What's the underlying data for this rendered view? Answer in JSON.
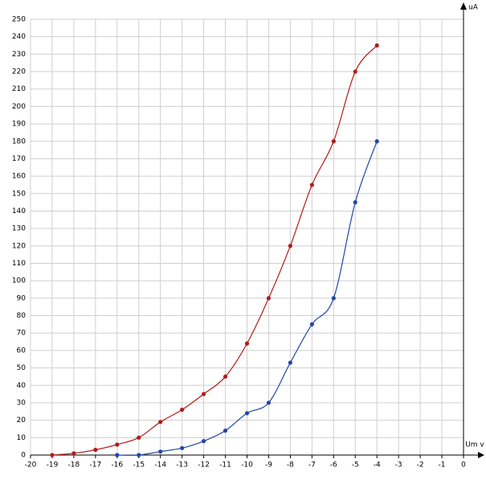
{
  "chart_data": {
    "type": "line",
    "y_label": "uA",
    "x_label": "Um v",
    "xlim": [
      -20,
      0
    ],
    "ylim": [
      0,
      250
    ],
    "xticks": [
      -20,
      -19,
      -18,
      -17,
      -16,
      -15,
      -14,
      -13,
      -12,
      -11,
      -10,
      -9,
      -8,
      -7,
      -6,
      -5,
      -4,
      -3,
      -2,
      -1,
      0
    ],
    "yticks": [
      0,
      10,
      20,
      30,
      40,
      50,
      60,
      70,
      80,
      90,
      100,
      110,
      120,
      130,
      140,
      150,
      160,
      170,
      180,
      190,
      200,
      210,
      220,
      230,
      240,
      250
    ],
    "grid": true,
    "series": [
      {
        "color": "#b31b1b",
        "x": [
          -19,
          -18,
          -17,
          -16,
          -15,
          -14,
          -13,
          -12,
          -11,
          -10,
          -9,
          -8,
          -7,
          -6,
          -5,
          -4
        ],
        "values": [
          0,
          1,
          3,
          6,
          10,
          19,
          26,
          35,
          45,
          64,
          90,
          120,
          155,
          180,
          220,
          235
        ]
      },
      {
        "color": "#2446a8",
        "x": [
          -16,
          -15,
          -14,
          -13,
          -12,
          -11,
          -10,
          -9,
          -8,
          -7,
          -6,
          -5,
          -4
        ],
        "values": [
          0,
          0,
          2,
          4,
          8,
          14,
          24,
          30,
          53,
          75,
          90,
          145,
          180
        ]
      }
    ]
  }
}
